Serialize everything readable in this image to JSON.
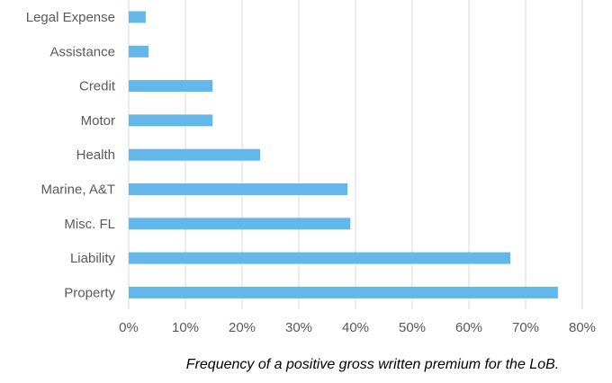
{
  "chart_data": {
    "type": "bar",
    "orientation": "horizontal",
    "categories": [
      "Legal Expense",
      "Assistance",
      "Credit",
      "Motor",
      "Health",
      "Marine, A&T",
      "Misc. FL",
      "Liability",
      "Property"
    ],
    "values": [
      3,
      3.5,
      14.8,
      14.8,
      23.2,
      38.6,
      39.1,
      67.3,
      75.7
    ],
    "xlim": [
      0,
      80
    ],
    "x_ticks": [
      "0%",
      "10%",
      "20%",
      "30%",
      "40%",
      "50%",
      "60%",
      "70%",
      "80%"
    ],
    "grid": "vertical",
    "legend": "none",
    "bar_color": "#63B8E9",
    "caption": "Frequency of a positive gross written premium for the LoB."
  }
}
